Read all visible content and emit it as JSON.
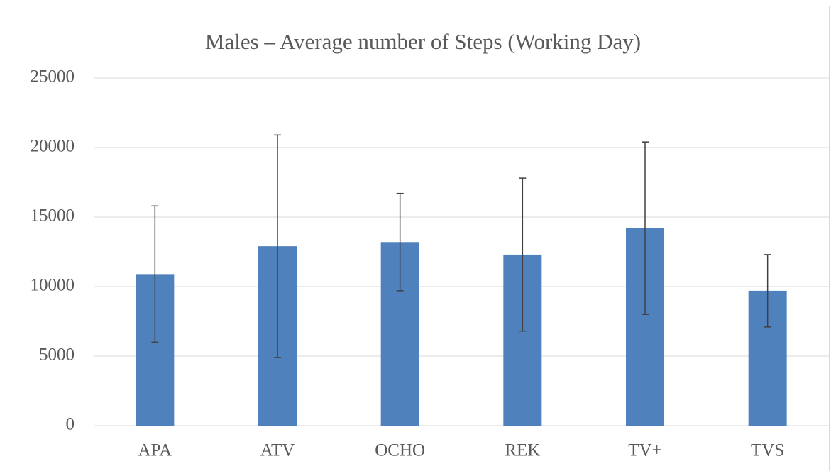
{
  "chart_data": {
    "type": "bar",
    "title": "Males – Average number of Steps (Working Day)",
    "categories": [
      "APA",
      "ATV",
      "OCHO",
      "REK",
      "TV+",
      "TVS"
    ],
    "values": [
      10900,
      12900,
      13200,
      12300,
      14200,
      9700
    ],
    "errors": [
      4900,
      8000,
      3500,
      5500,
      6200,
      2600
    ],
    "color": "#4f81bd",
    "ylim": [
      0,
      25000
    ],
    "yticks": [
      0,
      5000,
      10000,
      15000,
      20000,
      25000
    ],
    "grid": true
  }
}
